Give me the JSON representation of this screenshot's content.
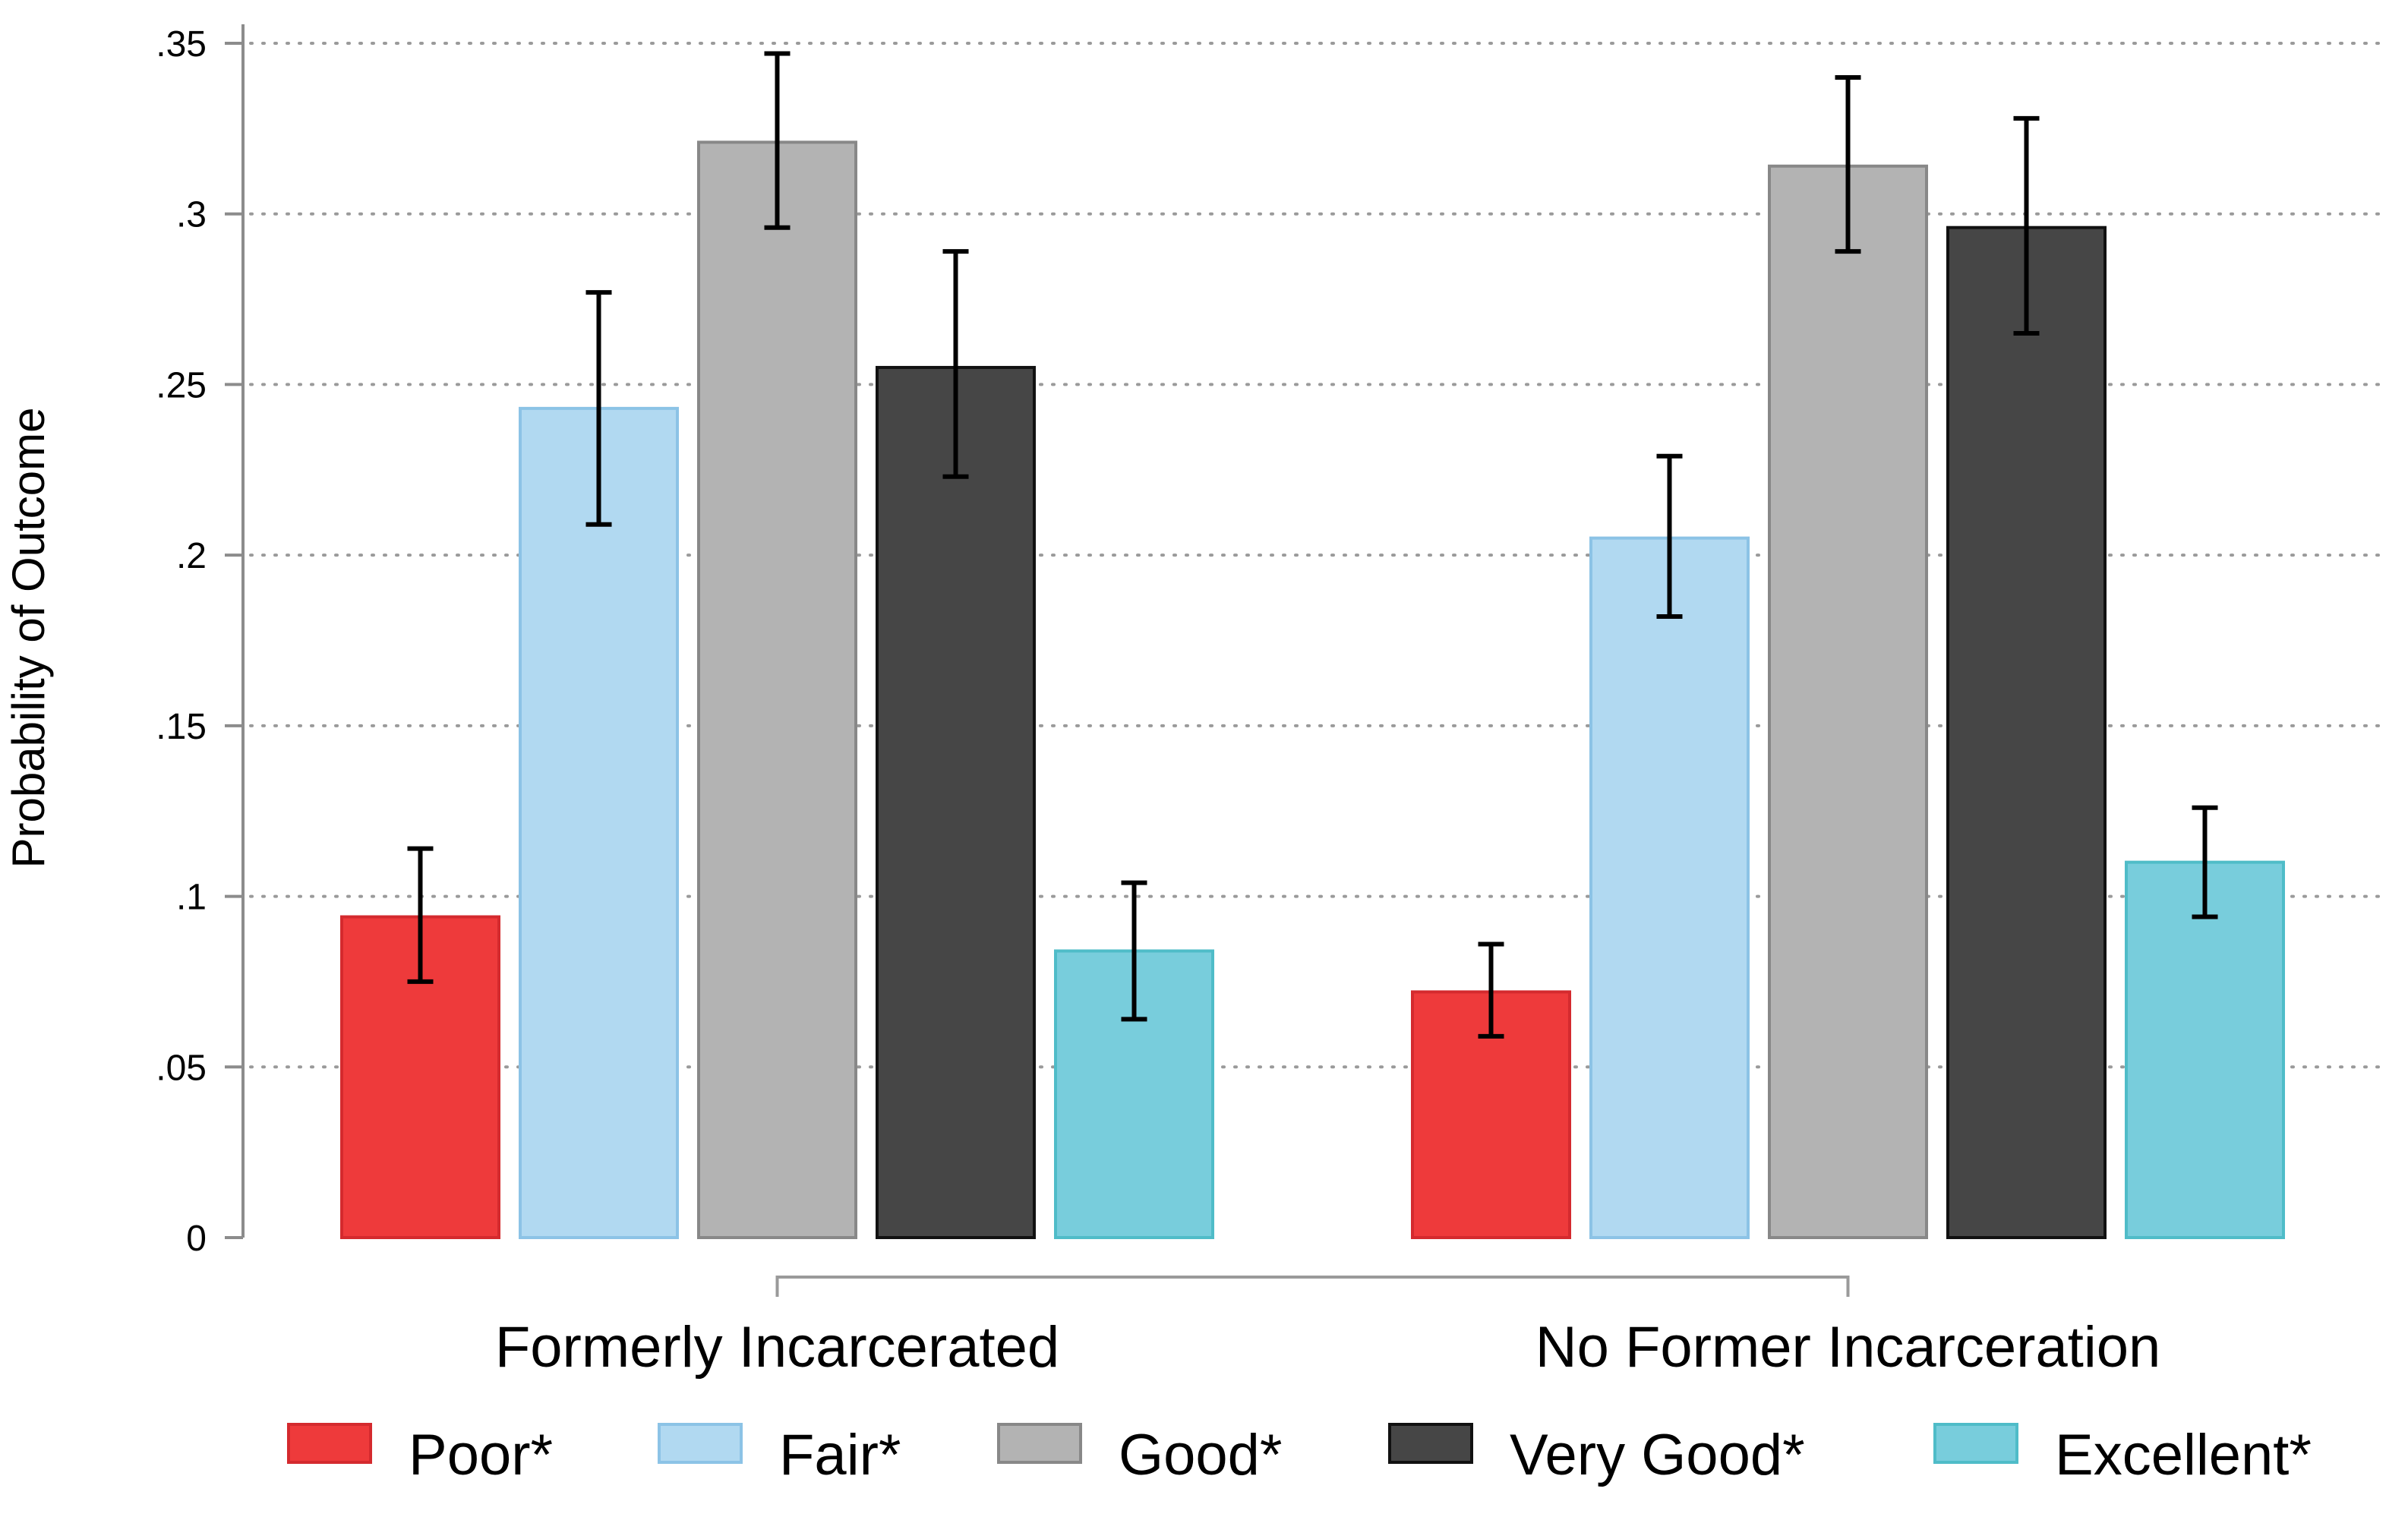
{
  "chart_data": {
    "type": "bar",
    "title": "",
    "xlabel": "",
    "ylabel": "Probability of Outcome",
    "ylim": [
      0,
      0.35
    ],
    "yticks": [
      0,
      0.05,
      0.1,
      0.15,
      0.2,
      0.25,
      0.3,
      0.35
    ],
    "ytick_labels": [
      "0",
      ".05",
      ".1",
      ".15",
      ".2",
      ".25",
      ".3",
      ".35"
    ],
    "grid": true,
    "legend_position": "bottom",
    "categories": [
      "Formerly Incarcerated",
      "No Former Incarceration"
    ],
    "series": [
      {
        "name": "Poor*",
        "color": "#EE3A3B",
        "edge": "#D42A2E",
        "values": [
          0.094,
          0.072
        ],
        "ci_low": [
          0.075,
          0.059
        ],
        "ci_high": [
          0.114,
          0.086
        ]
      },
      {
        "name": "Fair*",
        "color": "#B1D9F1",
        "edge": "#8CC3E6",
        "values": [
          0.243,
          0.205
        ],
        "ci_low": [
          0.209,
          0.182
        ],
        "ci_high": [
          0.277,
          0.229
        ]
      },
      {
        "name": "Good*",
        "color": "#B3B3B3",
        "edge": "#888888",
        "values": [
          0.321,
          0.314
        ],
        "ci_low": [
          0.296,
          0.289
        ],
        "ci_high": [
          0.347,
          0.34
        ]
      },
      {
        "name": "Very Good*",
        "color": "#464646",
        "edge": "#111111",
        "values": [
          0.255,
          0.296
        ],
        "ci_low": [
          0.223,
          0.265
        ],
        "ci_high": [
          0.289,
          0.328
        ]
      },
      {
        "name": "Excellent*",
        "color": "#78CDDC",
        "edge": "#4FBCC8",
        "values": [
          0.084,
          0.11
        ],
        "ci_low": [
          0.064,
          0.094
        ],
        "ci_high": [
          0.104,
          0.126
        ]
      }
    ]
  }
}
